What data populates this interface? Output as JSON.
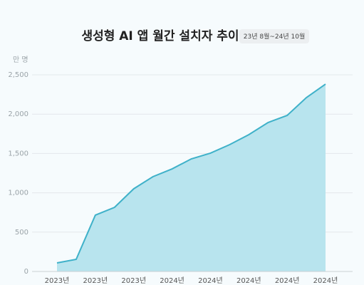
{
  "chart_data": {
    "type": "area",
    "title": "생성형 AI 앱 월간 설치자 추이",
    "subtitle": "23년 8월~24년 10월",
    "y_label": "만 명",
    "categories": [
      "2023년",
      null,
      "2023년",
      null,
      "2023년",
      null,
      "2024년",
      null,
      "2024년",
      null,
      "2024년",
      null,
      "2024년",
      null,
      "2024년"
    ],
    "series": [
      {
        "name": "설치자",
        "color": "#3fb1c9",
        "values": [
          109,
          154,
          716,
          815,
          1051,
          1205,
          1304,
          1431,
          1504,
          1612,
          1739,
          1893,
          1984,
          2210,
          2382
        ]
      }
    ],
    "area_color": "#b8e4ee",
    "ylim": [
      0,
      2500
    ],
    "yticks": [
      0,
      500,
      {
        "value": 1000,
        "label": "1,000"
      },
      {
        "value": 1500,
        "label": "1,500"
      },
      {
        "value": 2000,
        "label": "2,000"
      },
      {
        "value": 2500,
        "label": "2,500"
      }
    ],
    "grid": true
  }
}
